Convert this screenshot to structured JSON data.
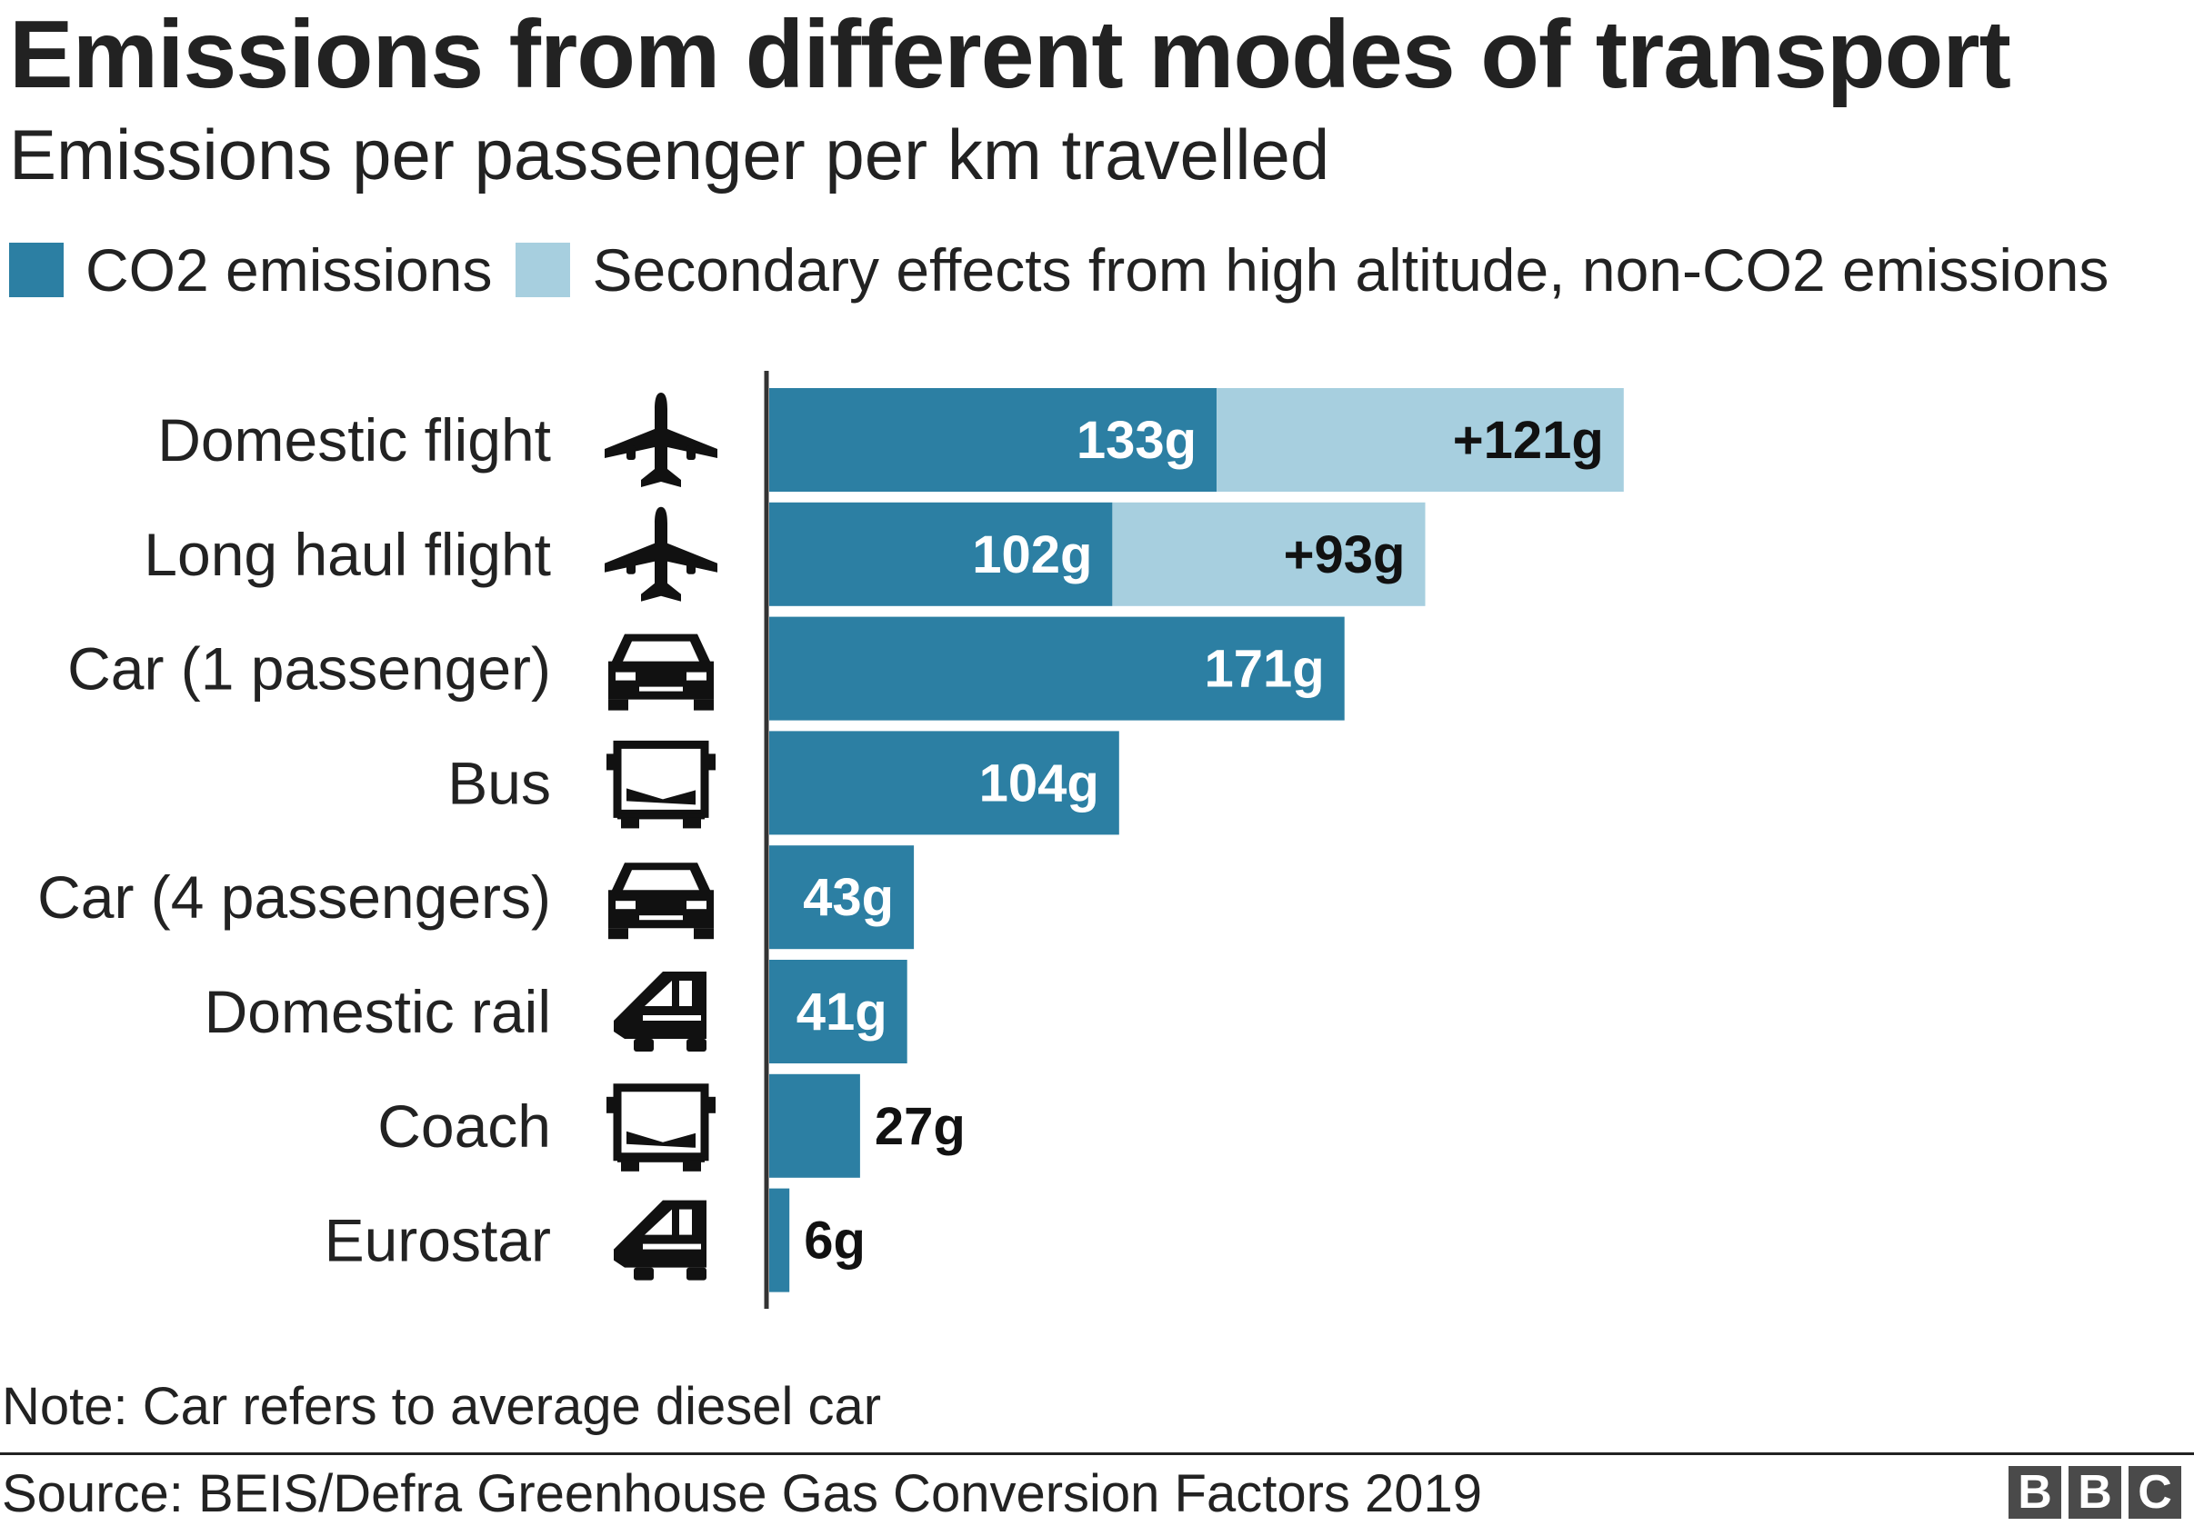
{
  "title": "Emissions from different modes of transport",
  "subtitle": "Emissions per passenger per km travelled",
  "legend": [
    {
      "label": "CO2 emissions",
      "color": "#2c7fa3"
    },
    {
      "label": "Secondary effects from high altitude, non-CO2 emissions",
      "color": "#a7cfdf"
    }
  ],
  "note": "Note: Car refers to average diesel car",
  "source": "Source: BEIS/Defra Greenhouse Gas Conversion Factors 2019",
  "logo": [
    "B",
    "B",
    "C"
  ],
  "chart_data": {
    "type": "bar",
    "orientation": "horizontal",
    "stacked": true,
    "xlim": [
      0,
      255
    ],
    "grid": false,
    "categories": [
      "Domestic flight",
      "Long haul flight",
      "Car (1 passenger)",
      "Bus",
      "Car (4 passengers)",
      "Domestic rail",
      "Coach",
      "Eurostar"
    ],
    "icons": [
      "plane-icon",
      "plane-icon",
      "car-icon",
      "bus-icon",
      "car-icon",
      "train-icon",
      "bus-icon",
      "train-icon"
    ],
    "series": [
      {
        "name": "CO2 emissions",
        "color": "#2c7fa3",
        "values": [
          133,
          102,
          171,
          104,
          43,
          41,
          27,
          6
        ],
        "labels": [
          "133g",
          "102g",
          "171g",
          "104g",
          "43g",
          "41g",
          "27g",
          "6g"
        ]
      },
      {
        "name": "Secondary effects from high altitude, non-CO2 emissions",
        "color": "#a7cfdf",
        "values": [
          121,
          93,
          0,
          0,
          0,
          0,
          0,
          0
        ],
        "labels": [
          "+121g",
          "+93g",
          "",
          "",
          "",
          "",
          "",
          ""
        ]
      }
    ]
  }
}
